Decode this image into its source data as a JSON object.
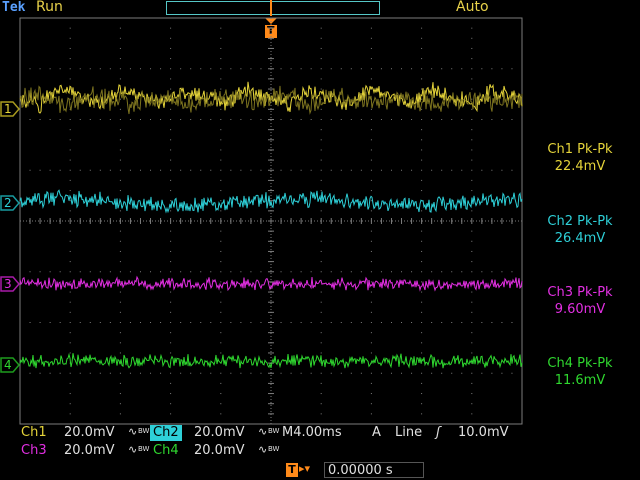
{
  "header": {
    "brand": "Tek",
    "status": "Run",
    "trigger_mode": "Auto",
    "trigger_marker": "T"
  },
  "channels": [
    {
      "id": "1",
      "color": "#e5d43a",
      "ring": "#a89a1f",
      "measure_label": "Ch1 Pk-Pk",
      "measure_value": "22.4mV"
    },
    {
      "id": "2",
      "color": "#2ed0d8",
      "ring": "#189ba0",
      "measure_label": "Ch2 Pk-Pk",
      "measure_value": "26.4mV"
    },
    {
      "id": "3",
      "color": "#e22fe2",
      "ring": "#a81aa8",
      "measure_label": "Ch3 Pk-Pk",
      "measure_value": "9.60mV"
    },
    {
      "id": "4",
      "color": "#2fd82f",
      "ring": "#1d9c1d",
      "measure_label": "Ch4 Pk-Pk",
      "measure_value": "11.6mV"
    }
  ],
  "footer": {
    "ch1_label": "Ch1",
    "ch1_scale": "20.0mV",
    "ch2_label": "Ch2",
    "ch2_scale": "20.0mV",
    "ch3_label": "Ch3",
    "ch3_scale": "20.0mV",
    "ch4_label": "Ch4",
    "ch4_scale": "20.0mV",
    "coupling_symbol": "∿",
    "bw_symbol": "BW",
    "timebase": "M4.00ms",
    "trigger_source_label": "A",
    "trigger_source": "Line",
    "trigger_slope_symbol": "ʃ",
    "trigger_level": "10.0mV",
    "trigger_position_label": "T",
    "trigger_position_arrow": "▸▾",
    "trigger_position_value": "0.00000 s"
  },
  "colors": {
    "grid": "#7d7d7d",
    "record_bar": "#56c7c7",
    "trigger_marker": "#ff8a1a",
    "footer_text": "#e0e0e0"
  },
  "icons": {
    "trigger_marker": "trigger-marker-icon",
    "ground_marker": "ground-level-marker-icon",
    "slope": "rising-slope-icon",
    "coupling": "ac-coupling-icon",
    "bandwidth": "bandwidth-limit-icon"
  }
}
